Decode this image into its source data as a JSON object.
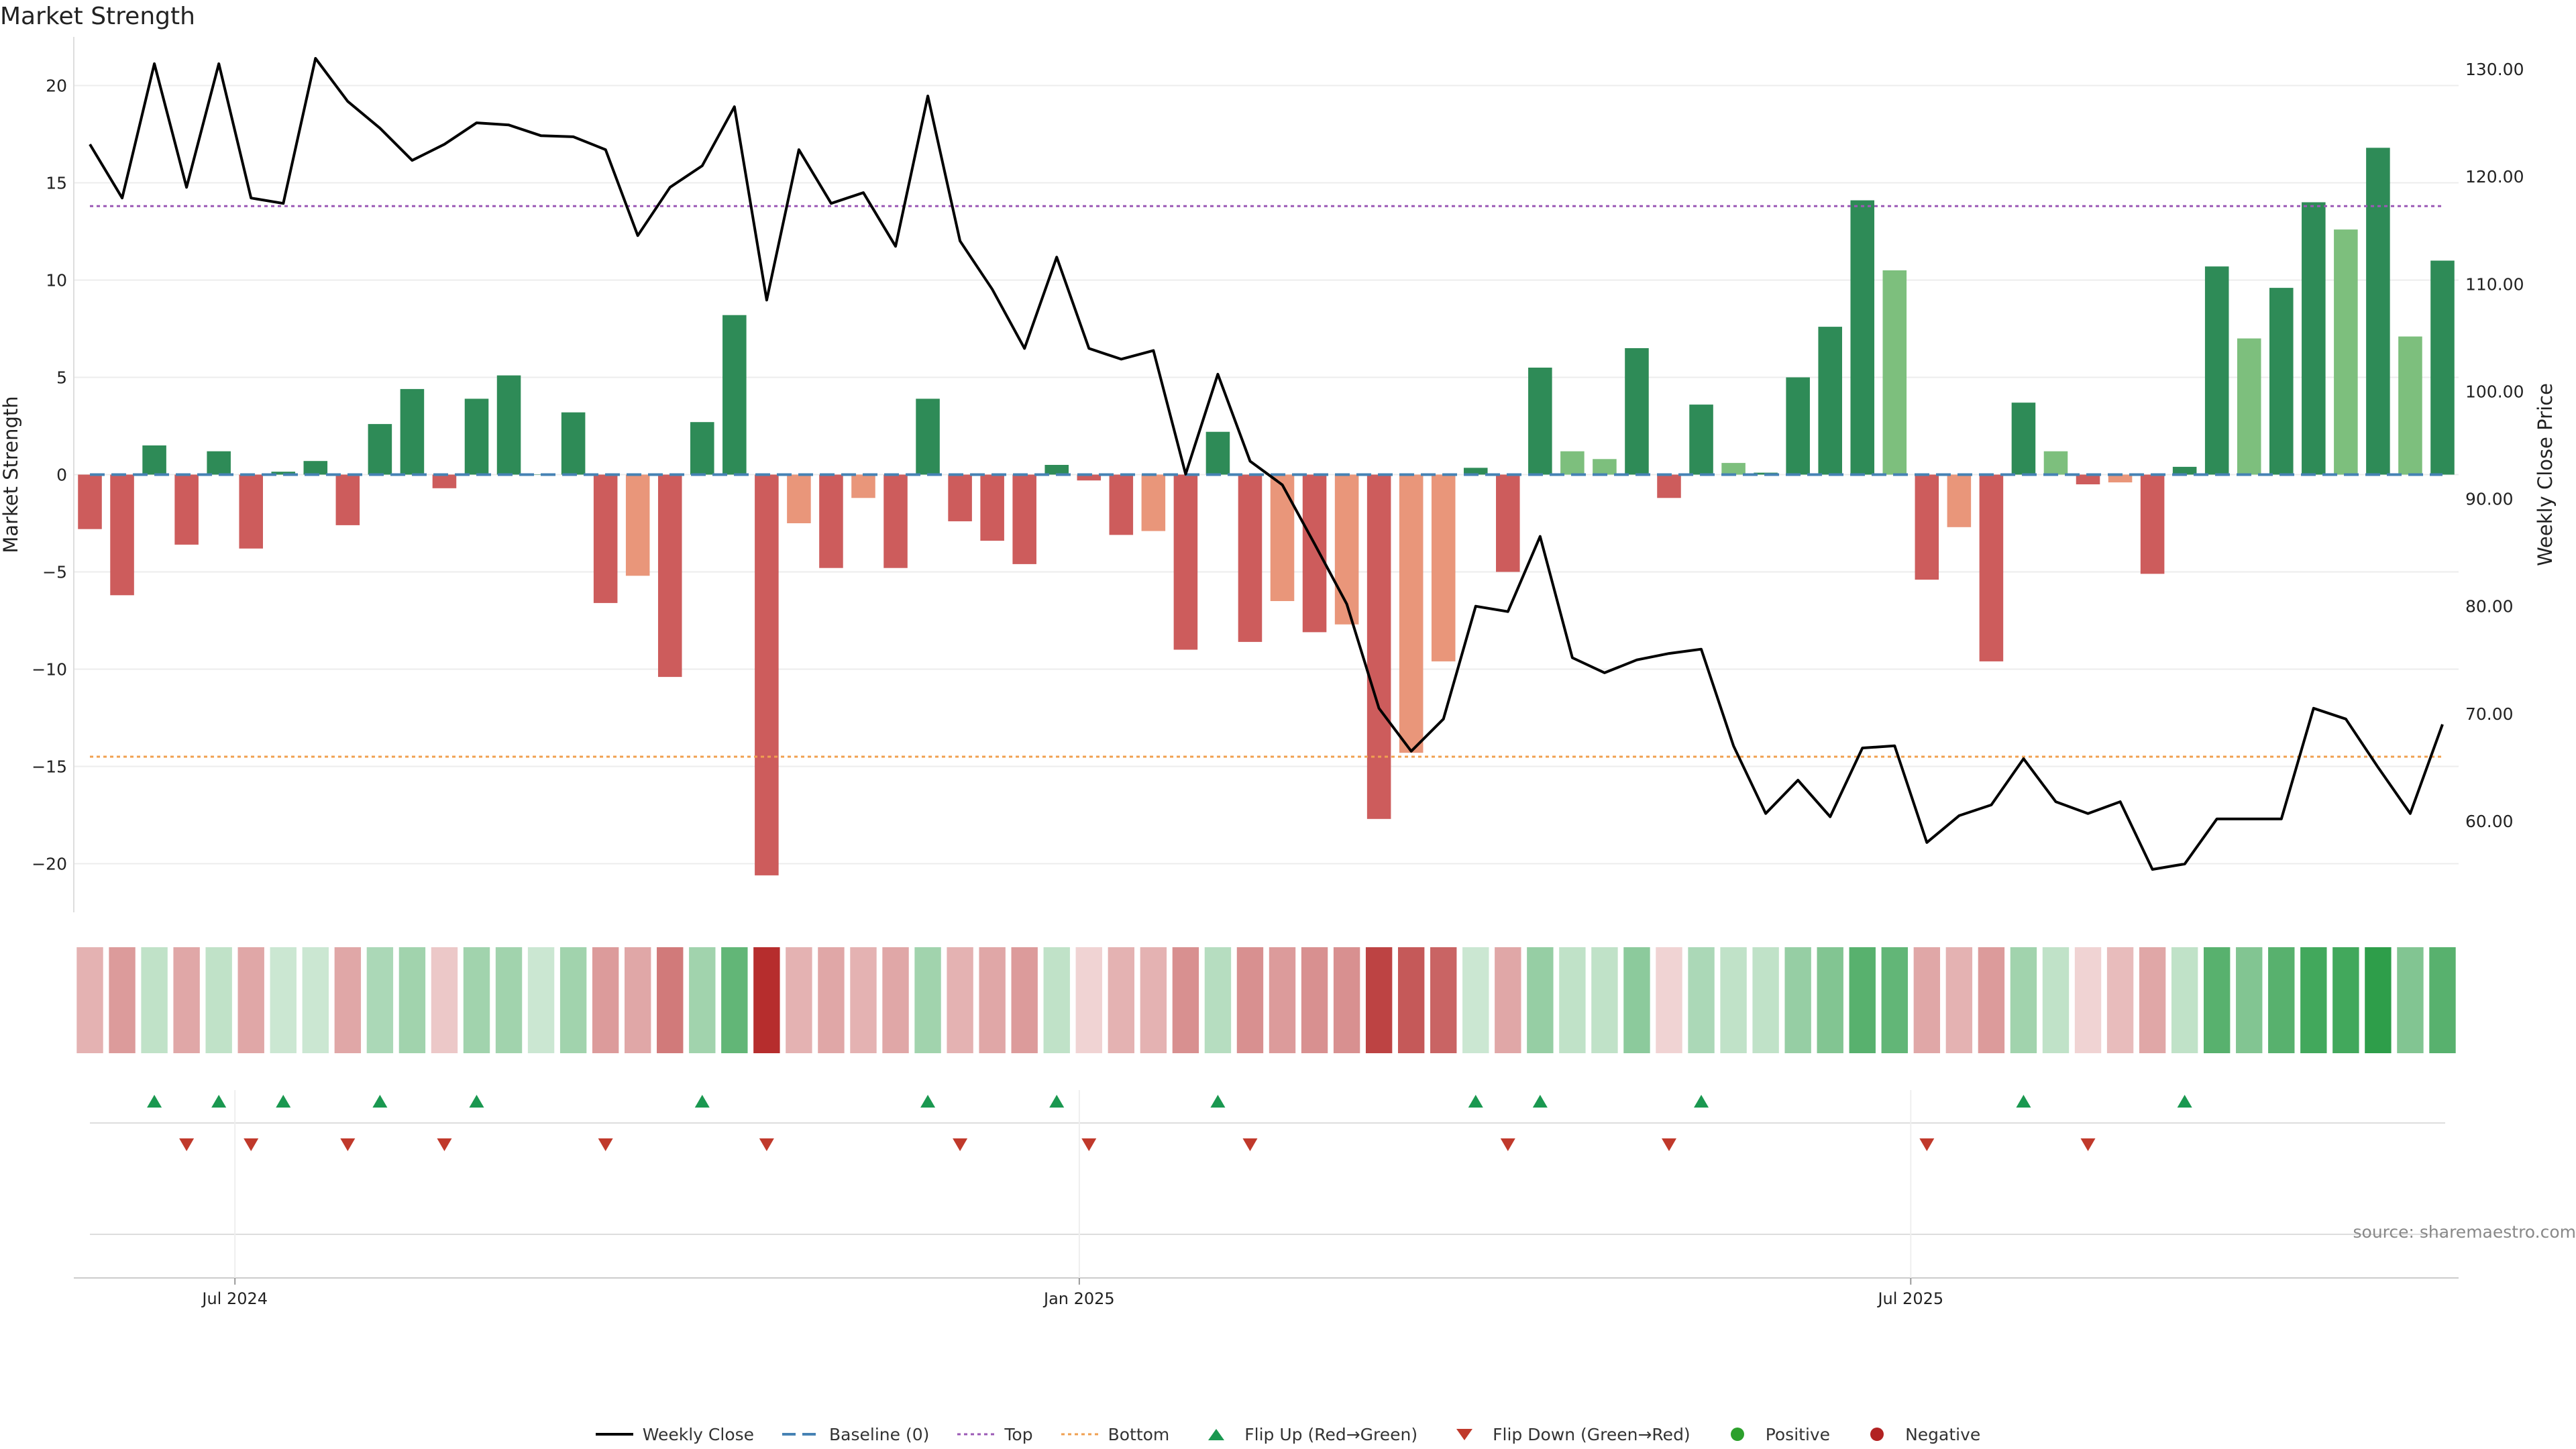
{
  "title": "Market Strength",
  "source_note": "source: sharemaestro.com",
  "colors": {
    "strong_pos": "#2e8b57",
    "weak_pos": "#7dbf7d",
    "strong_neg": "#cd5c5c",
    "weak_neg": "#e9967a",
    "close_line": "#000000",
    "baseline": "#4682b4",
    "top": "#9b59b6",
    "bottom": "#f0a050",
    "flip_up": "#1a9850",
    "flip_down": "#c0392b",
    "positive": "#2ca02c",
    "negative": "#b22222"
  },
  "legend": [
    {
      "label": "Weekly Close",
      "symbol": "line-solid"
    },
    {
      "label": "Baseline (0)",
      "symbol": "line-dashed"
    },
    {
      "label": "Top",
      "symbol": "line-dotted-purple"
    },
    {
      "label": "Bottom",
      "symbol": "line-dotted-orange"
    },
    {
      "label": "Flip Up (Red→Green)",
      "symbol": "triangle-up"
    },
    {
      "label": "Flip Down (Green→Red)",
      "symbol": "triangle-down"
    },
    {
      "label": "Positive",
      "symbol": "dot-green"
    },
    {
      "label": "Negative",
      "symbol": "dot-red"
    }
  ],
  "chart_data": {
    "type": "bar",
    "title": "Market Strength",
    "ylabel": "Market Strength",
    "y2label": "Weekly Close Price",
    "ylim": [
      -22.5,
      22.5
    ],
    "y2lim": [
      51.5,
      133
    ],
    "yticks": [
      -20,
      -15,
      -10,
      -5,
      0,
      5,
      10,
      15,
      20
    ],
    "y2ticks": [
      "60.00",
      "70.00",
      "80.00",
      "90.00",
      "100.00",
      "110.00",
      "120.00",
      "130.00"
    ],
    "xticks": [
      {
        "label": "Jul 2024",
        "index": 4.5
      },
      {
        "label": "Jan 2025",
        "index": 30.7
      },
      {
        "label": "Jul 2025",
        "index": 56.5
      }
    ],
    "reference_lines": {
      "baseline": 0,
      "top": 13.8,
      "bottom": -14.5
    },
    "strength": [
      -2.8,
      -6.2,
      1.5,
      -3.6,
      1.2,
      -3.8,
      0.15,
      0.7,
      -2.6,
      2.6,
      4.4,
      -0.7,
      3.9,
      5.1,
      0,
      3.2,
      -6.6,
      -5.2,
      -10.4,
      2.7,
      8.2,
      -20.6,
      -2.5,
      -4.8,
      -1.2,
      -4.8,
      3.9,
      -2.4,
      -3.4,
      -4.6,
      0.5,
      -0.3,
      -3.1,
      -2.9,
      -9,
      2.2,
      -8.6,
      -6.5,
      -8.1,
      -7.7,
      -17.7,
      -14.3,
      -9.6,
      0.35,
      -5,
      5.5,
      1.2,
      0.8,
      6.5,
      -1.2,
      3.6,
      0.6,
      0.1,
      5,
      7.6,
      14.1,
      10.5,
      -5.4,
      -2.7,
      -9.6,
      3.7,
      1.2,
      -0.5,
      -0.4,
      -5.1,
      0.4,
      10.7,
      7,
      9.6,
      14,
      12.6,
      16.8,
      7.1,
      11
    ],
    "strength_class": [
      "sn",
      "sn",
      "sp",
      "sn",
      "sp",
      "sn",
      "sp",
      "sp",
      "sn",
      "sp",
      "sp",
      "sn",
      "sp",
      "sp",
      "sp",
      "sp",
      "sn",
      "wn",
      "sn",
      "sp",
      "sp",
      "sn",
      "wn",
      "sn",
      "wn",
      "sn",
      "sp",
      "sn",
      "sn",
      "sn",
      "sp",
      "sn",
      "sn",
      "wn",
      "sn",
      "sp",
      "sn",
      "wn",
      "sn",
      "wn",
      "sn",
      "wn",
      "wn",
      "sp",
      "sn",
      "sp",
      "wp",
      "wp",
      "sp",
      "sn",
      "sp",
      "wp",
      "sp",
      "sp",
      "sp",
      "sp",
      "wp",
      "sn",
      "wn",
      "sn",
      "sp",
      "wp",
      "sn",
      "wn",
      "sn",
      "sp",
      "sp",
      "wp",
      "sp",
      "sp",
      "wp",
      "sp",
      "wp",
      "sp"
    ],
    "weekly_close": [
      123,
      118,
      130.5,
      119,
      130.5,
      118,
      117.5,
      131,
      127,
      124.5,
      121.5,
      123,
      125,
      124.8,
      123.8,
      123.7,
      122.5,
      114.5,
      119,
      121,
      126.5,
      108.5,
      122.5,
      117.5,
      118.5,
      113.5,
      127.5,
      114,
      109.5,
      104,
      112.5,
      104,
      103,
      103.8,
      92.3,
      101.6,
      93.5,
      91.3,
      85.8,
      80.2,
      70.5,
      66.5,
      69.5,
      80,
      79.5,
      86.5,
      75.2,
      73.8,
      75,
      75.6,
      76,
      67,
      60.7,
      63.8,
      60.4,
      66.8,
      67,
      58,
      60.5,
      61.5,
      65.8,
      61.8,
      60.7,
      61.8,
      55.5,
      56,
      60.2,
      60.2,
      60.2,
      70.5,
      69.5,
      65,
      60.7,
      69
    ],
    "tile_intensity": [
      0.35,
      0.45,
      0.3,
      0.4,
      0.3,
      0.4,
      0.25,
      0.25,
      0.4,
      0.4,
      0.45,
      0.25,
      0.45,
      0.45,
      0.25,
      0.45,
      0.45,
      0.4,
      0.6,
      0.45,
      0.75,
      0.95,
      0.35,
      0.4,
      0.35,
      0.4,
      0.45,
      0.35,
      0.4,
      0.45,
      0.3,
      0.2,
      0.35,
      0.35,
      0.5,
      0.35,
      0.5,
      0.45,
      0.5,
      0.5,
      0.85,
      0.75,
      0.7,
      0.25,
      0.4,
      0.5,
      0.3,
      0.3,
      0.55,
      0.2,
      0.4,
      0.3,
      0.3,
      0.5,
      0.6,
      0.8,
      0.75,
      0.4,
      0.35,
      0.45,
      0.45,
      0.3,
      0.2,
      0.3,
      0.4,
      0.3,
      0.8,
      0.6,
      0.8,
      0.9,
      0.9,
      1,
      0.6,
      0.8
    ],
    "flip_up_index": [
      2,
      4,
      6,
      9,
      12,
      19,
      26,
      30,
      35,
      43,
      45,
      50,
      60,
      65
    ],
    "flip_down_index": [
      3,
      5,
      8,
      11,
      16,
      21,
      27,
      31,
      36,
      44,
      49,
      57,
      62
    ]
  }
}
